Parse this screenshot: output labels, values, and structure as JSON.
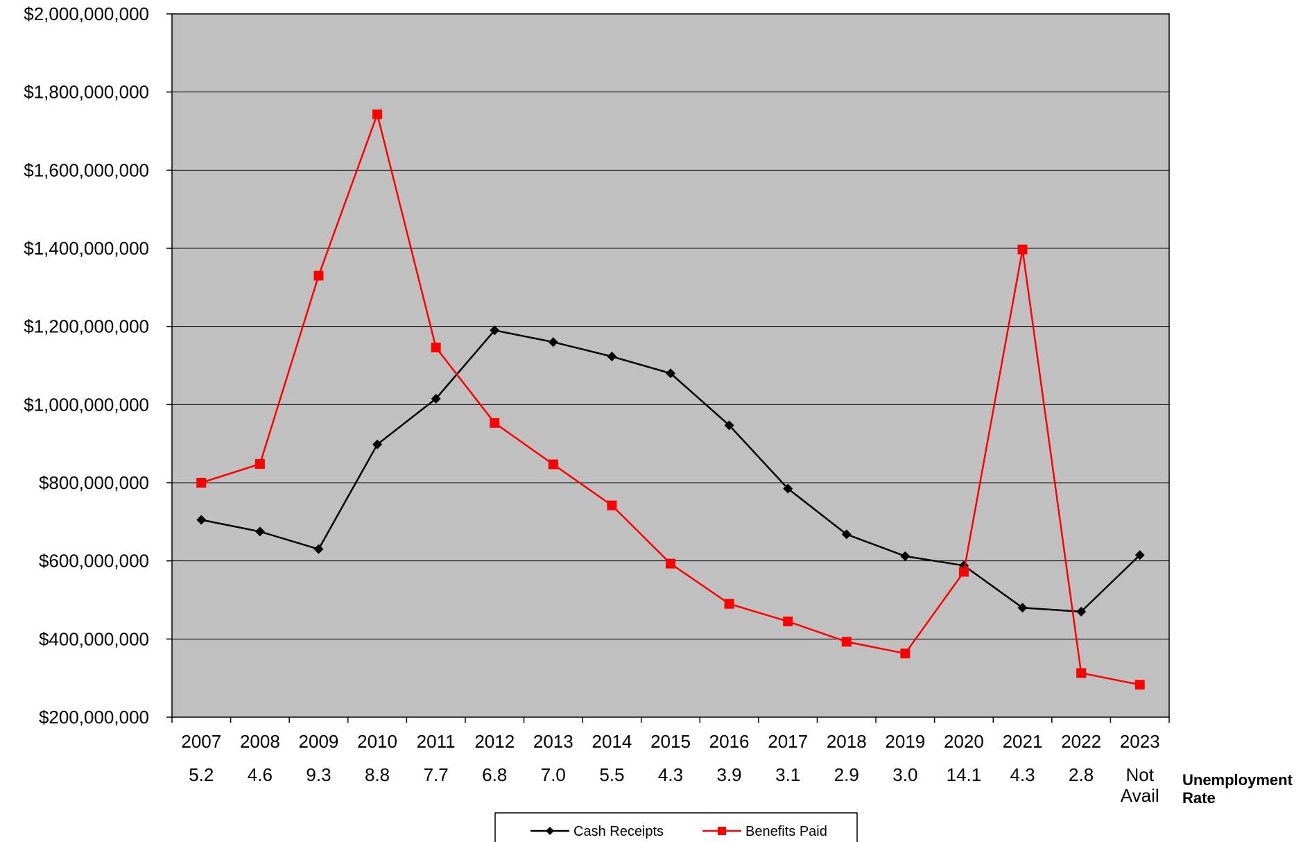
{
  "chart_data": {
    "type": "line",
    "title": "",
    "xlabel": "",
    "ylabel": "",
    "ylim": [
      200000000,
      2000000000
    ],
    "y_ticks": [
      "$200,000,000",
      "$400,000,000",
      "$600,000,000",
      "$800,000,000",
      "$1,000,000,000",
      "$1,200,000,000",
      "$1,400,000,000",
      "$1,600,000,000",
      "$1,800,000,000",
      "$2,000,000,000"
    ],
    "categories": [
      "2007",
      "2008",
      "2009",
      "2010",
      "2011",
      "2012",
      "2013",
      "2014",
      "2015",
      "2016",
      "2017",
      "2018",
      "2019",
      "2020",
      "2021",
      "2022",
      "2023"
    ],
    "unemployment_rates": [
      "5.2",
      "4.6",
      "9.3",
      "8.8",
      "7.7",
      "6.8",
      "7.0",
      "5.5",
      "4.3",
      "3.9",
      "3.1",
      "2.9",
      "3.0",
      "14.1",
      "4.3",
      "2.8",
      "Not Avail"
    ],
    "unemployment_label": "Unemployment Rate",
    "grid": true,
    "legend_position": "bottom-center",
    "series": [
      {
        "name": "Cash Receipts",
        "color": "#000000",
        "marker": "diamond",
        "values": [
          705000000,
          675000000,
          630000000,
          898000000,
          1015000000,
          1190000000,
          1160000000,
          1123000000,
          1080000000,
          947000000,
          785000000,
          668000000,
          612000000,
          588000000,
          480000000,
          470000000,
          615000000
        ]
      },
      {
        "name": "Benefits Paid",
        "color": "#ff0000",
        "marker": "square",
        "values": [
          800000000,
          848000000,
          1330000000,
          1743000000,
          1146000000,
          953000000,
          847000000,
          742000000,
          593000000,
          490000000,
          445000000,
          393000000,
          363000000,
          572000000,
          1397000000,
          313000000,
          283000000
        ]
      }
    ],
    "plot_area_color": "#c0c0c0"
  }
}
